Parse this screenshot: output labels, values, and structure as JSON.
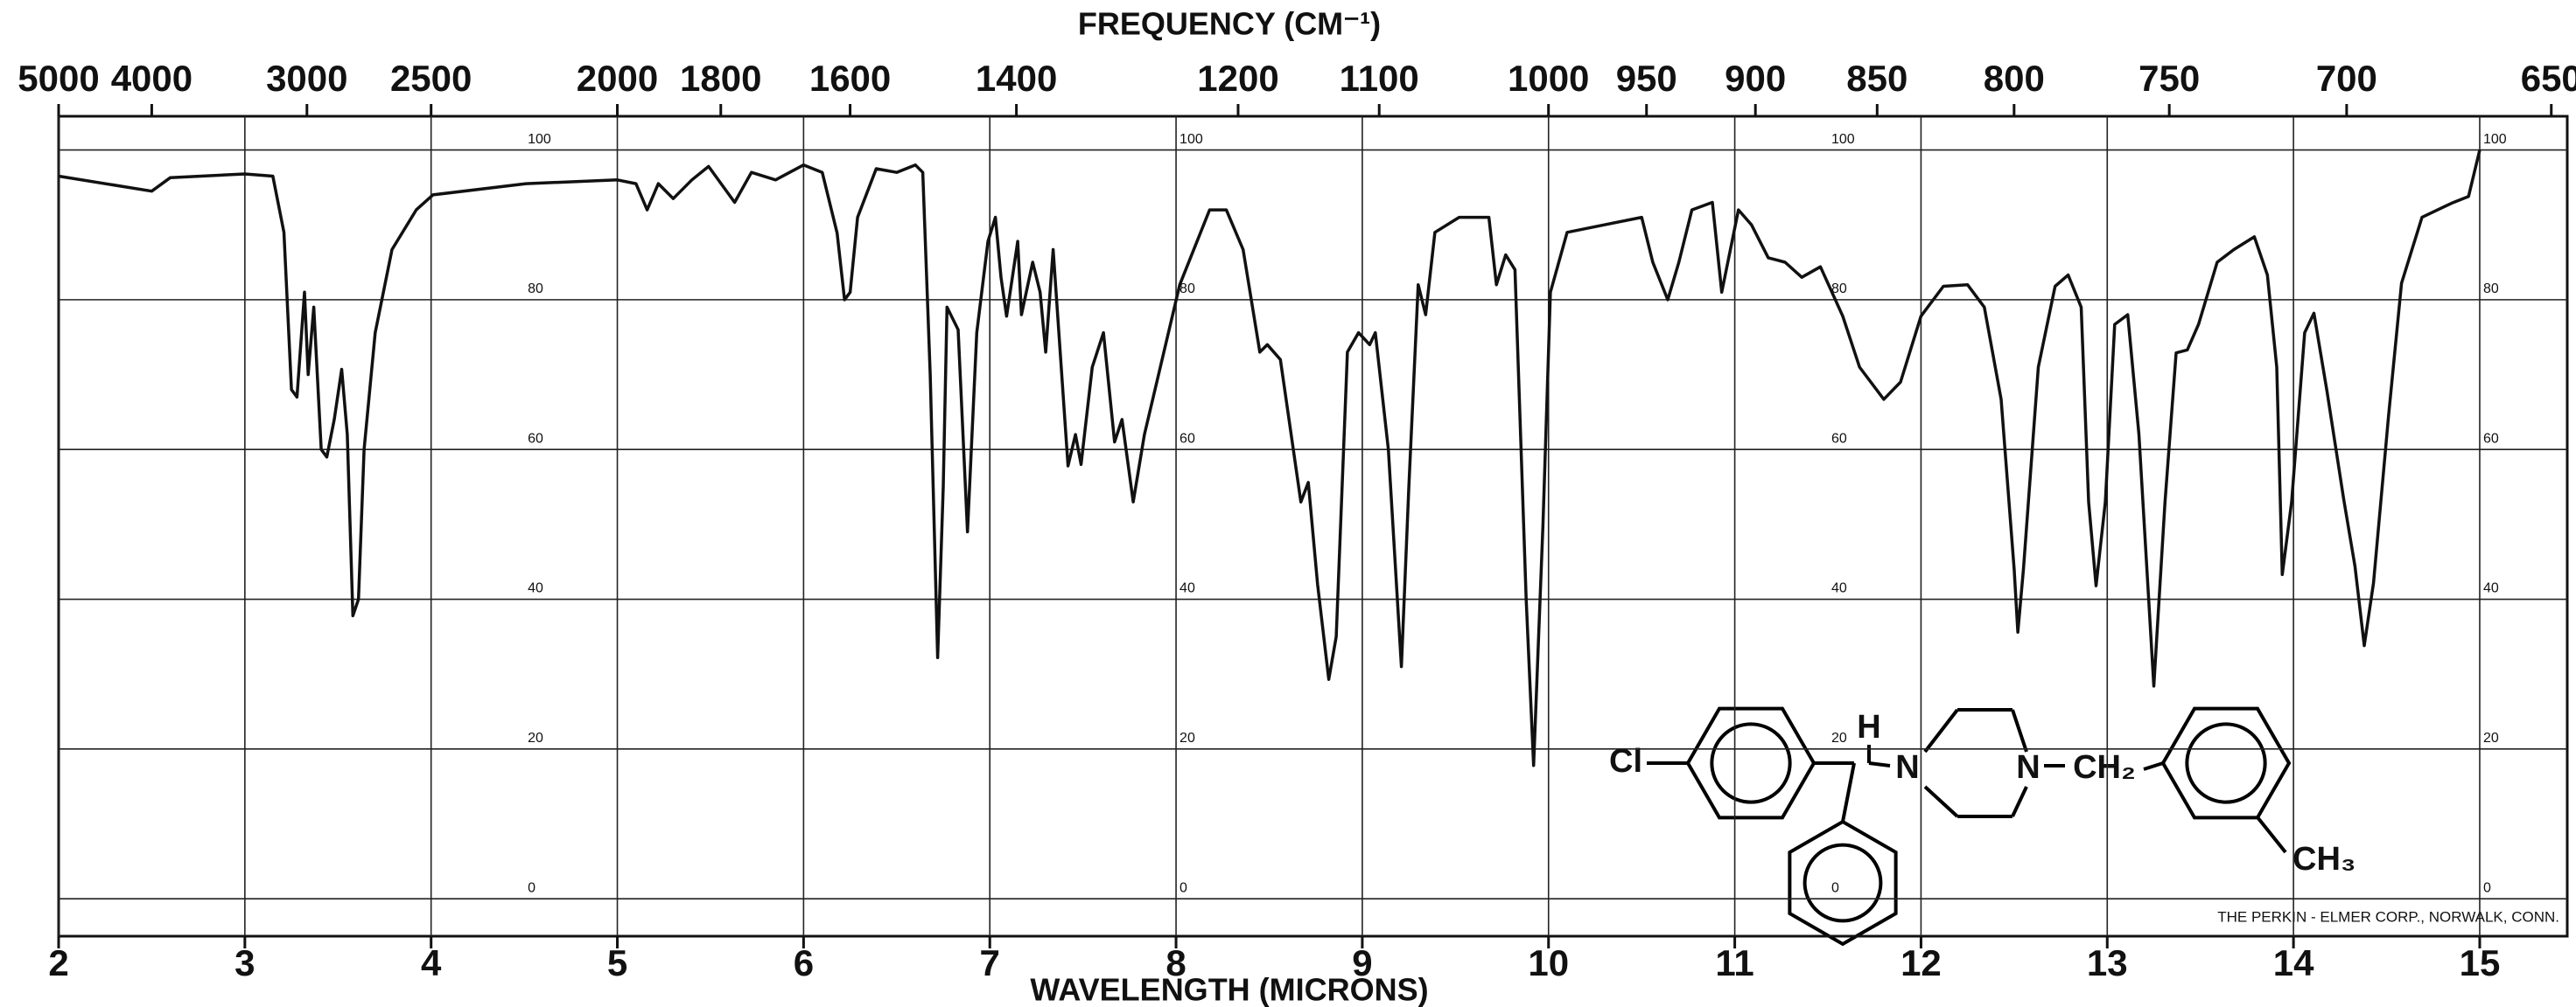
{
  "chart_data": {
    "type": "line",
    "title": "FREQUENCY (CM⁻¹)",
    "x_label": "WAVELENGTH (MICRONS)",
    "xlim": [
      2,
      15.47
    ],
    "xticks": [
      2,
      3,
      4,
      5,
      6,
      7,
      8,
      9,
      10,
      11,
      12,
      13,
      14,
      15
    ],
    "x2lim": [
      5000,
      646.4
    ],
    "x2scale": "reciprocal",
    "x2ticks": [
      5000,
      4000,
      3000,
      2500,
      2000,
      1800,
      1600,
      1400,
      1200,
      1100,
      1000,
      950,
      900,
      850,
      800,
      750,
      700,
      650
    ],
    "ylim": [
      -5,
      104.5
    ],
    "yticks": [
      0,
      20,
      40,
      60,
      80,
      100
    ],
    "grid": true,
    "series": [
      {
        "color": "#111111",
        "x": [
          2.0,
          2.5,
          2.6,
          3.0,
          3.15,
          3.21,
          3.25,
          3.28,
          3.32,
          3.34,
          3.37,
          3.41,
          3.44,
          3.48,
          3.52,
          3.55,
          3.58,
          3.61,
          3.64,
          3.7,
          3.79,
          3.92,
          4.01,
          4.51,
          5.0,
          5.1,
          5.16,
          5.22,
          5.3,
          5.4,
          5.49,
          5.63,
          5.72,
          5.85,
          6.0,
          6.1,
          6.18,
          6.22,
          6.25,
          6.29,
          6.39,
          6.5,
          6.6,
          6.64,
          6.68,
          6.72,
          6.75,
          6.77,
          6.83,
          6.88,
          6.93,
          6.99,
          7.03,
          7.06,
          7.09,
          7.15,
          7.17,
          7.23,
          7.27,
          7.3,
          7.34,
          7.42,
          7.46,
          7.49,
          7.55,
          7.61,
          7.67,
          7.71,
          7.77,
          7.83,
          8.02,
          8.18,
          8.27,
          8.36,
          8.45,
          8.49,
          8.56,
          8.67,
          8.71,
          8.76,
          8.82,
          8.86,
          8.92,
          8.98,
          9.04,
          9.07,
          9.14,
          9.21,
          9.25,
          9.3,
          9.34,
          9.39,
          9.52,
          9.62,
          9.68,
          9.72,
          9.77,
          9.82,
          9.88,
          9.92,
          9.97,
          10.01,
          10.1,
          10.3,
          10.5,
          10.56,
          10.64,
          10.7,
          10.77,
          10.88,
          10.93,
          11.02,
          11.09,
          11.18,
          11.27,
          11.36,
          11.46,
          11.58,
          11.67,
          11.8,
          11.89,
          12.0,
          12.12,
          12.25,
          12.34,
          12.43,
          12.5,
          12.52,
          12.55,
          12.63,
          12.72,
          12.79,
          12.86,
          12.9,
          12.94,
          12.99,
          13.04,
          13.11,
          13.17,
          13.25,
          13.31,
          13.37,
          13.43,
          13.49,
          13.59,
          13.68,
          13.79,
          13.86,
          13.91,
          13.94,
          13.99,
          14.06,
          14.11,
          14.18,
          14.27,
          14.33,
          14.38,
          14.43,
          14.51,
          14.58,
          14.69,
          14.85,
          14.94,
          15.0
        ],
        "values": [
          96.5,
          94.5,
          96.3,
          96.8,
          96.5,
          89,
          68,
          67,
          81,
          70,
          79,
          60,
          59,
          64,
          70.7,
          62,
          37.8,
          40,
          60,
          75.6,
          86.7,
          92,
          94,
          95.5,
          96,
          95.5,
          92,
          95.5,
          93.5,
          96,
          97.8,
          93,
          97,
          96,
          98,
          97,
          88.9,
          80,
          81,
          91,
          97.5,
          97,
          98,
          97,
          70,
          32.2,
          55,
          79,
          76,
          49,
          75.6,
          87.8,
          91,
          83,
          77.8,
          87.8,
          78,
          85,
          81,
          73,
          86.7,
          57.8,
          62,
          58,
          71,
          75.6,
          61,
          64,
          53,
          62,
          82,
          92,
          92,
          86.7,
          73,
          74,
          72,
          53,
          55.6,
          42,
          29.3,
          35,
          73,
          75.6,
          74,
          75.6,
          60,
          31,
          55,
          82,
          78,
          89,
          91,
          91,
          91,
          82,
          86,
          84,
          40,
          17.8,
          50,
          81,
          89,
          90,
          91,
          85,
          80,
          85,
          92,
          93,
          81,
          92,
          90,
          85.6,
          85,
          83,
          84.4,
          77.8,
          71,
          66.7,
          69,
          77.8,
          81.8,
          82,
          79,
          66.7,
          44,
          35.6,
          44,
          71,
          81.8,
          83.3,
          79,
          53,
          41.8,
          53,
          76.7,
          78,
          62,
          28.4,
          53,
          72.9,
          73.3,
          76.7,
          85,
          86.7,
          88.4,
          83.3,
          71,
          43.3,
          53,
          75.6,
          78.2,
          67.8,
          53.3,
          44.4,
          33.8,
          42.2,
          64.4,
          82.2,
          91,
          92.9,
          93.8,
          100
        ]
      }
    ],
    "annotations": [
      "Cl",
      "H",
      "N",
      "N",
      "CH₂",
      "CH₃",
      "THE PERKIN - ELMER CORP., NORWALK, CONN."
    ]
  }
}
